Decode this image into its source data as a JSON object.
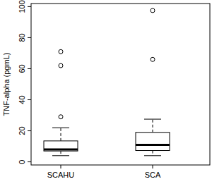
{
  "chart_data": {
    "type": "box",
    "y_label": "TNF-alpha (pgmL)",
    "categories": [
      "SCAHU",
      "SCA"
    ],
    "boxes": [
      {
        "min": 4,
        "q1": 7,
        "median": 8,
        "q3": 13.5,
        "max": 22,
        "outliers": [
          29,
          62,
          71
        ]
      },
      {
        "min": 4,
        "q1": 7.3,
        "median": 11,
        "q3": 19,
        "max": 27.5,
        "outliers": [
          66,
          97.5
        ]
      }
    ],
    "color": "#000000",
    "ylim": [
      -2,
      102
    ],
    "yticks": [
      0,
      20,
      40,
      60,
      80,
      100
    ]
  }
}
